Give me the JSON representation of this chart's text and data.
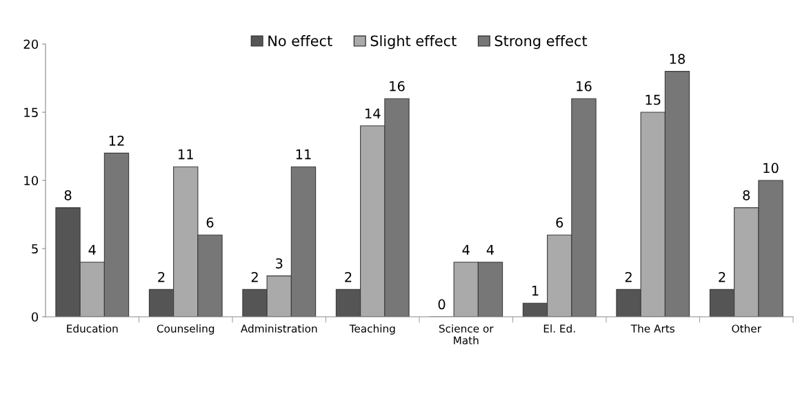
{
  "chart_data": {
    "type": "bar",
    "categories": [
      "Education",
      "Counseling",
      "Administration",
      "Teaching",
      "Science or Math",
      "El. Ed.",
      "The Arts",
      "Other"
    ],
    "series": [
      {
        "name": "No effect",
        "color": "#555555",
        "values": [
          8,
          2,
          2,
          2,
          0,
          1,
          2,
          2
        ]
      },
      {
        "name": "Slight effect",
        "color": "#aaaaaa",
        "values": [
          4,
          11,
          3,
          14,
          4,
          6,
          15,
          8
        ]
      },
      {
        "name": "Strong effect",
        "color": "#777777",
        "values": [
          12,
          6,
          11,
          16,
          4,
          16,
          18,
          10
        ]
      }
    ],
    "ylim": [
      0,
      20
    ],
    "yticks": [
      0,
      5,
      10,
      15,
      20
    ],
    "grid": false,
    "legend": "top",
    "data_labels": true
  }
}
